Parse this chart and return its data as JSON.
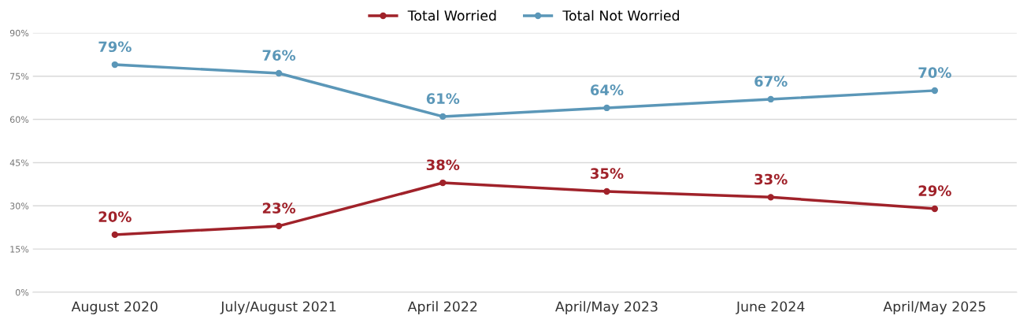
{
  "chart_data": {
    "type": "line",
    "categories": [
      "August 2020",
      "July/August 2021",
      "April 2022",
      "April/May 2023",
      "June 2024",
      "April/May 2025"
    ],
    "series": [
      {
        "name": "Total Worried",
        "color": "#a0222a",
        "values": [
          20,
          23,
          38,
          35,
          33,
          29
        ],
        "value_labels": [
          "20%",
          "23%",
          "38%",
          "35%",
          "33%",
          "29%"
        ]
      },
      {
        "name": "Total Not Worried",
        "color": "#5b97b8",
        "values": [
          79,
          76,
          61,
          64,
          67,
          70
        ],
        "value_labels": [
          "79%",
          "76%",
          "61%",
          "64%",
          "67%",
          "70%"
        ]
      }
    ],
    "ylim": [
      0,
      90
    ],
    "yticks": [
      {
        "value": 0,
        "label": "0%"
      },
      {
        "value": 15,
        "label": "15%"
      },
      {
        "value": 30,
        "label": "30%"
      },
      {
        "value": 45,
        "label": "45%"
      },
      {
        "value": 60,
        "label": "60%"
      },
      {
        "value": 75,
        "label": "75%"
      },
      {
        "value": 90,
        "label": "90%"
      }
    ],
    "grid": "y",
    "legend": "top",
    "marker": "circle",
    "line_style": "solid"
  }
}
